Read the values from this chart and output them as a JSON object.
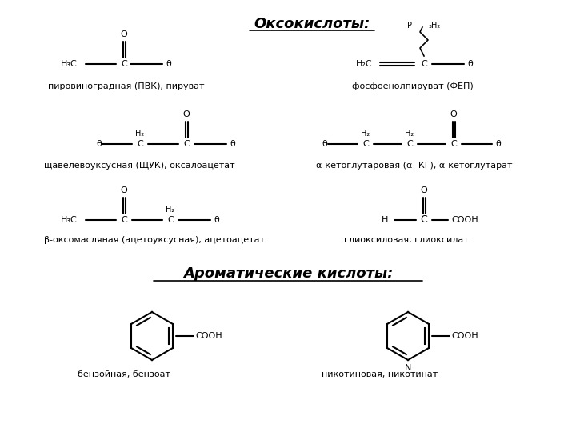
{
  "title1": "Оксокислоты:",
  "title2": "Ароматические кислоты:",
  "bg_color": "#ffffff",
  "text_color": "#000000",
  "labels": {
    "pyruvate": "пировиноградная (ПВК), пируват",
    "pep": "фосфоенолпируват (ФЕП)",
    "oaa": "щавелевоуксусная (ЩУК), оксалоацетат",
    "akg": "α-кетоглутаровая (α -КГ), α-кетоглутарат",
    "acetoacetate": "β-оксомасляная (ацетоуксусная), ацетоацетат",
    "glyoxylate": "глиоксиловая, глиоксилат",
    "benzoate": "бензойная, бензоат",
    "nicotinate": "никотиновая, никотинат"
  }
}
